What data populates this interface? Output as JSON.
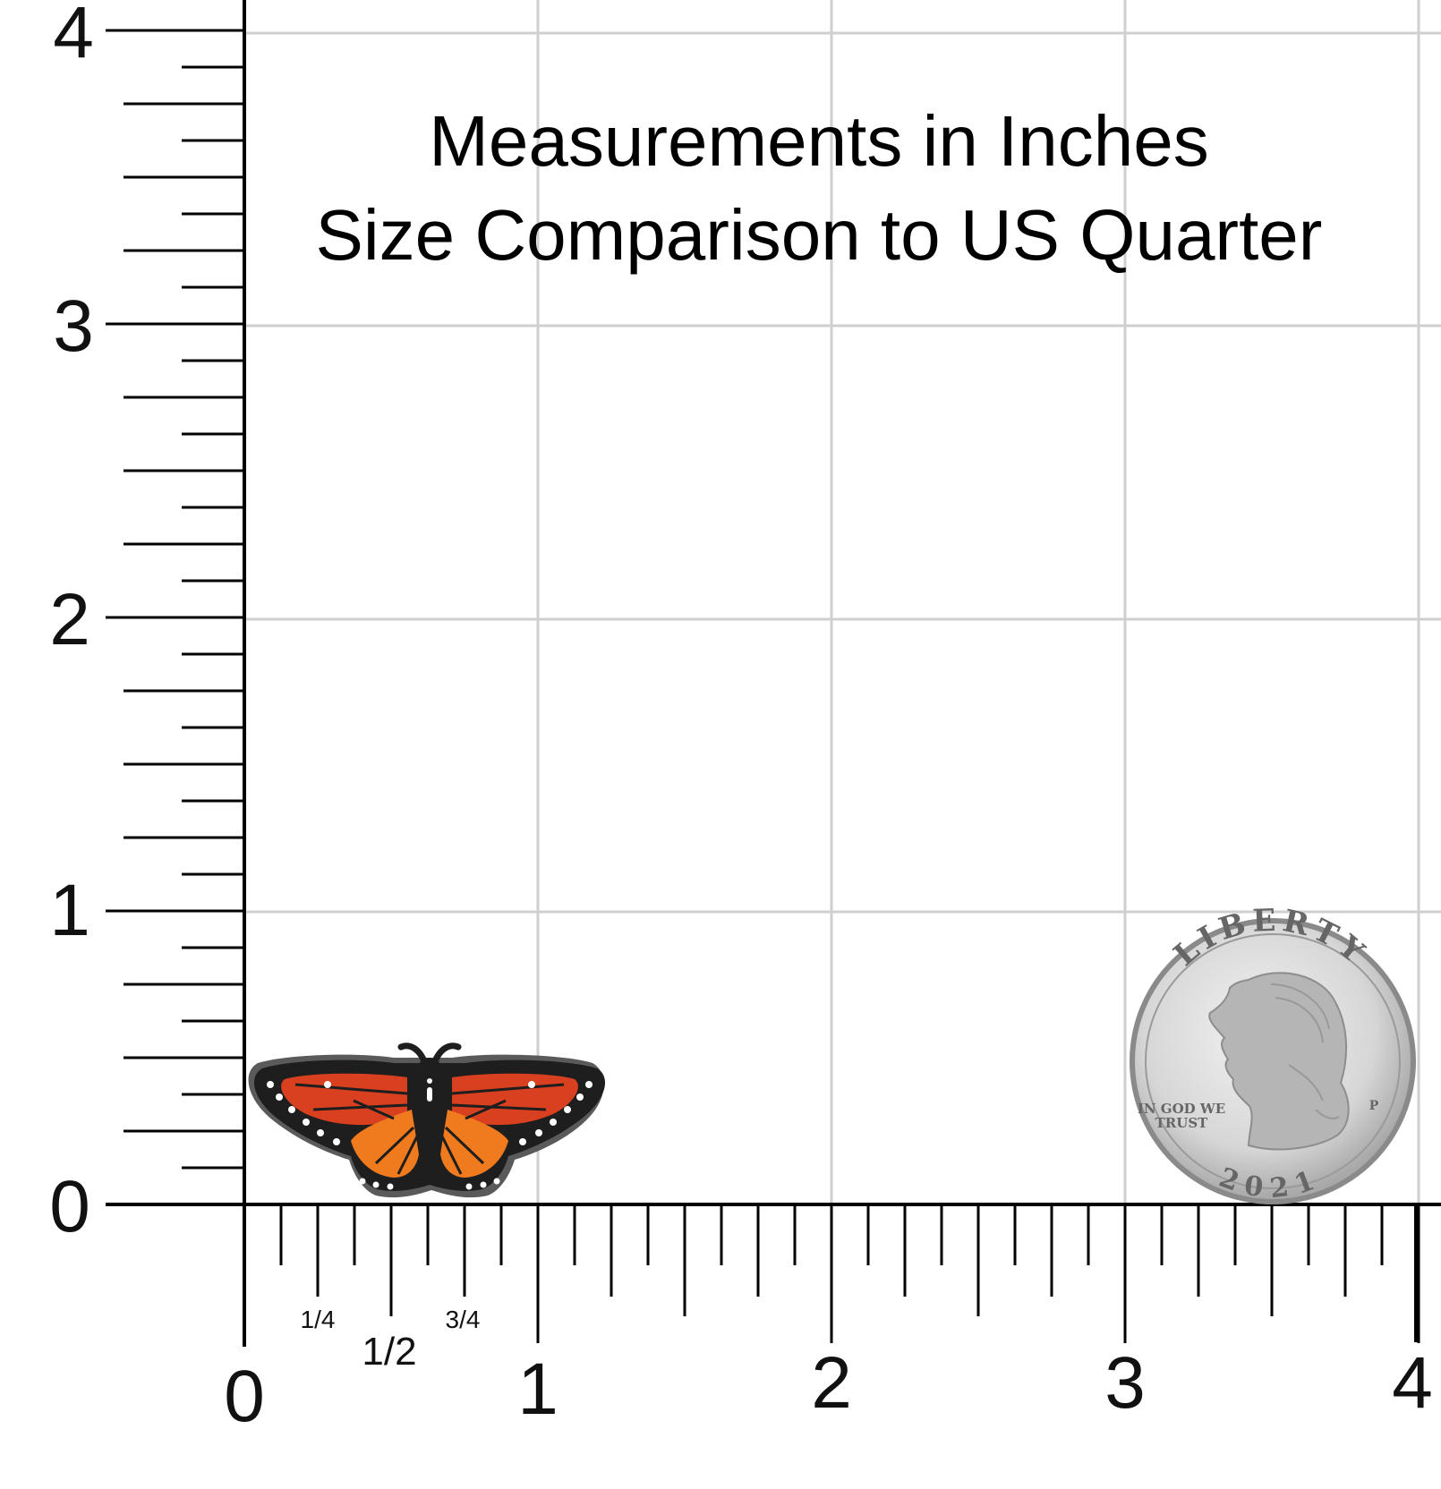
{
  "title": {
    "line1": "Measurements in Inches",
    "line2": "Size Comparison to US Quarter"
  },
  "axes": {
    "x_labels": [
      "0",
      "1",
      "2",
      "3",
      "4"
    ],
    "y_labels": [
      "0",
      "1",
      "2",
      "3",
      "4"
    ],
    "x_fraction_labels": [
      "1/4",
      "1/2",
      "3/4"
    ]
  },
  "items": {
    "butterfly_pin": {
      "colors": {
        "orange": "#f07a1e",
        "red": "#d9401f",
        "outline": "#1e1e1e",
        "metal": "#5a5a5a"
      }
    },
    "quarter": {
      "legend_top": "LIBERTY",
      "motto": [
        "IN GOD WE",
        "TRUST"
      ],
      "year": "2021",
      "mint_mark": "P"
    }
  },
  "colors": {
    "grid": "#cfcfcf",
    "axis": "#000000",
    "background": "#ffffff"
  }
}
